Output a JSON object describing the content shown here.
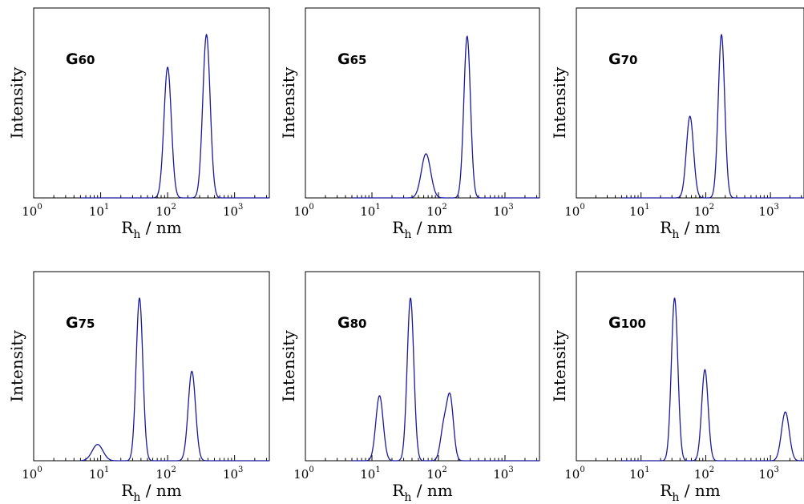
{
  "chart_data": [
    {
      "type": "line",
      "label": {
        "main": "G",
        "sub": "60"
      },
      "xlabel": {
        "main": "R",
        "sub": "h",
        "unit": " / nm"
      },
      "ylabel": "Intensity",
      "xscale": "log",
      "xticks": [
        {
          "value": 1,
          "base": "10",
          "exp": "0"
        },
        {
          "value": 10,
          "base": "10",
          "exp": "1"
        },
        {
          "value": 100,
          "base": "10",
          "exp": "2"
        },
        {
          "value": 1000,
          "base": "10",
          "exp": "3"
        }
      ],
      "xlim": [
        1,
        3300
      ],
      "ylim": [
        0,
        1
      ],
      "color": "#1a1a9a",
      "peaks": [
        {
          "center": 100,
          "height": 0.8,
          "width": 0.055
        },
        {
          "center": 380,
          "height": 1.0,
          "width": 0.055
        }
      ]
    },
    {
      "type": "line",
      "label": {
        "main": "G",
        "sub": "65"
      },
      "xlabel": {
        "main": "R",
        "sub": "h",
        "unit": " / nm"
      },
      "ylabel": "Intensity",
      "xscale": "log",
      "xticks": [
        {
          "value": 1,
          "base": "10",
          "exp": "0"
        },
        {
          "value": 10,
          "base": "10",
          "exp": "1"
        },
        {
          "value": 100,
          "base": "10",
          "exp": "2"
        },
        {
          "value": 1000,
          "base": "10",
          "exp": "3"
        }
      ],
      "xlim": [
        1,
        3300
      ],
      "ylim": [
        0,
        1
      ],
      "color": "#1a1a9a",
      "peaks": [
        {
          "center": 65,
          "height": 0.27,
          "width": 0.07
        },
        {
          "center": 270,
          "height": 0.99,
          "width": 0.05
        }
      ]
    },
    {
      "type": "line",
      "label": {
        "main": "G",
        "sub": "70"
      },
      "xlabel": {
        "main": "R",
        "sub": "h",
        "unit": " / nm"
      },
      "ylabel": "Intensity",
      "xscale": "log",
      "xticks": [
        {
          "value": 1,
          "base": "10",
          "exp": "0"
        },
        {
          "value": 10,
          "base": "10",
          "exp": "1"
        },
        {
          "value": 100,
          "base": "10",
          "exp": "2"
        },
        {
          "value": 1000,
          "base": "10",
          "exp": "3"
        }
      ],
      "xlim": [
        1,
        3300
      ],
      "ylim": [
        0,
        1
      ],
      "color": "#1a1a9a",
      "peaks": [
        {
          "center": 57,
          "height": 0.5,
          "width": 0.055
        },
        {
          "center": 175,
          "height": 1.0,
          "width": 0.05
        }
      ]
    },
    {
      "type": "line",
      "label": {
        "main": "G",
        "sub": "75"
      },
      "xlabel": {
        "main": "R",
        "sub": "h",
        "unit": " / nm"
      },
      "ylabel": "Intensity",
      "xscale": "log",
      "xticks": [
        {
          "value": 1,
          "base": "10",
          "exp": "0"
        },
        {
          "value": 10,
          "base": "10",
          "exp": "1"
        },
        {
          "value": 100,
          "base": "10",
          "exp": "2"
        },
        {
          "value": 1000,
          "base": "10",
          "exp": "3"
        }
      ],
      "xlim": [
        1,
        3300
      ],
      "ylim": [
        0,
        1
      ],
      "color": "#1a1a9a",
      "peaks": [
        {
          "center": 9,
          "height": 0.1,
          "width": 0.08
        },
        {
          "center": 38,
          "height": 1.0,
          "width": 0.05
        },
        {
          "center": 230,
          "height": 0.55,
          "width": 0.055
        }
      ]
    },
    {
      "type": "line",
      "label": {
        "main": "G",
        "sub": "80"
      },
      "xlabel": {
        "main": "R",
        "sub": "h",
        "unit": " / nm"
      },
      "ylabel": "Intensity",
      "xscale": "log",
      "xticks": [
        {
          "value": 1,
          "base": "10",
          "exp": "0"
        },
        {
          "value": 10,
          "base": "10",
          "exp": "1"
        },
        {
          "value": 100,
          "base": "10",
          "exp": "2"
        },
        {
          "value": 1000,
          "base": "10",
          "exp": "3"
        }
      ],
      "xlim": [
        1,
        3300
      ],
      "ylim": [
        0,
        1
      ],
      "color": "#1a1a9a",
      "peaks": [
        {
          "center": 13,
          "height": 0.4,
          "width": 0.055
        },
        {
          "center": 38,
          "height": 1.0,
          "width": 0.05
        },
        {
          "center": 120,
          "height": 0.2,
          "width": 0.05
        },
        {
          "center": 150,
          "height": 0.38,
          "width": 0.05
        }
      ]
    },
    {
      "type": "line",
      "label": {
        "main": "G",
        "sub": "100"
      },
      "xlabel": {
        "main": "R",
        "sub": "h",
        "unit": " / nm"
      },
      "ylabel": "Intensity",
      "xscale": "log",
      "xticks": [
        {
          "value": 1,
          "base": "10",
          "exp": "0"
        },
        {
          "value": 10,
          "base": "10",
          "exp": "1"
        },
        {
          "value": 100,
          "base": "10",
          "exp": "2"
        },
        {
          "value": 1000,
          "base": "10",
          "exp": "3"
        }
      ],
      "xlim": [
        1,
        3300
      ],
      "ylim": [
        0,
        1
      ],
      "color": "#1a1a9a",
      "peaks": [
        {
          "center": 33,
          "height": 1.0,
          "width": 0.05
        },
        {
          "center": 97,
          "height": 0.56,
          "width": 0.05
        },
        {
          "center": 1700,
          "height": 0.3,
          "width": 0.06
        }
      ]
    }
  ]
}
